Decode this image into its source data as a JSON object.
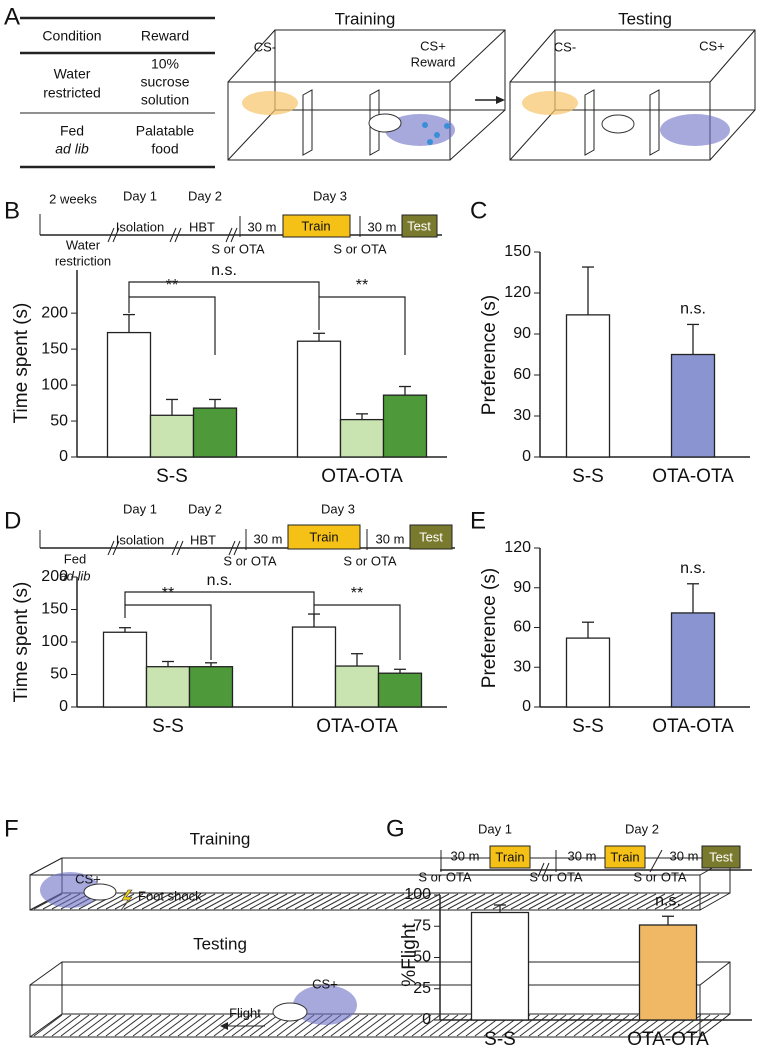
{
  "figure": {
    "panel_labels": [
      "A",
      "B",
      "C",
      "D",
      "E",
      "F",
      "G"
    ],
    "table": {
      "header": [
        "Condition",
        "Reward"
      ],
      "rows": [
        [
          [
            "Water",
            "restricted"
          ],
          [
            "10%",
            "sucrose",
            "solution"
          ]
        ],
        [
          [
            "Fed",
            "ad lib"
          ],
          [
            "Palatable",
            "food"
          ]
        ]
      ]
    },
    "diagram_a": {
      "training": "Training",
      "testing": "Testing",
      "cs_minus": "CS-",
      "cs_plus_reward": [
        "CS+",
        "Reward"
      ],
      "cs_plus": "CS+"
    },
    "timeline_b": {
      "days": [
        "2 weeks",
        "Day 1",
        "Day 2",
        "Day 3"
      ],
      "phases": [
        "Water",
        "restriction",
        "Isolation",
        "HBT"
      ],
      "interval": "30 m",
      "injection": "S or OTA",
      "train": "Train",
      "test": "Test"
    },
    "timeline_d": {
      "days": [
        "Day 1",
        "Day 2",
        "Day 3"
      ],
      "phases": [
        "Fed",
        "ad lib",
        "Isolation",
        "HBT"
      ],
      "interval": "30 m",
      "injection": "S or OTA",
      "train": "Train",
      "test": "Test"
    },
    "diagram_f": {
      "training": "Training",
      "testing": "Testing",
      "cs_plus": "CS+",
      "foot_shock": "Foot shock",
      "flight": "Flight"
    },
    "timeline_g": {
      "days": [
        "Day 1",
        "Day 2"
      ],
      "interval": "30 m",
      "injection": "S or OTA",
      "train": "Train",
      "test": "Test"
    }
  },
  "chart_data": [
    {
      "type": "bar",
      "ylabel": "Time spent (s)",
      "categories": [
        "S-S",
        "OTA-OTA"
      ],
      "series": [
        {
          "color": "#ffffff",
          "values": [
            173,
            161
          ],
          "errors": [
            25,
            11
          ]
        },
        {
          "color": "#c9e4b0",
          "values": [
            58,
            52
          ],
          "errors": [
            22,
            8
          ]
        },
        {
          "color": "#4e9a3a",
          "values": [
            68,
            86
          ],
          "errors": [
            12,
            12
          ]
        }
      ],
      "ylim": [
        0,
        260
      ],
      "yticks": [
        0,
        50,
        100,
        150,
        200
      ],
      "annotations": [
        "**",
        "**",
        "n.s."
      ]
    },
    {
      "type": "bar",
      "ylabel": "Preference (s)",
      "categories": [
        "S-S",
        "OTA-OTA"
      ],
      "series": [
        {
          "colors": [
            "#ffffff",
            "#8a94d0"
          ],
          "values": [
            104,
            75
          ],
          "errors": [
            35,
            22
          ]
        }
      ],
      "ylim": [
        0,
        150
      ],
      "yticks": [
        0,
        30,
        60,
        90,
        120,
        150
      ],
      "annotations": [
        "n.s."
      ]
    },
    {
      "type": "bar",
      "ylabel": "Time spent (s)",
      "categories": [
        "S-S",
        "OTA-OTA"
      ],
      "series": [
        {
          "color": "#ffffff",
          "values": [
            115,
            123
          ],
          "errors": [
            7,
            20
          ]
        },
        {
          "color": "#c9e4b0",
          "values": [
            62,
            63
          ],
          "errors": [
            8,
            19
          ]
        },
        {
          "color": "#4e9a3a",
          "values": [
            62,
            52
          ],
          "errors": [
            6,
            6
          ]
        }
      ],
      "ylim": [
        0,
        200
      ],
      "yticks": [
        0,
        50,
        100,
        150,
        200
      ],
      "annotations": [
        "**",
        "**",
        "n.s."
      ]
    },
    {
      "type": "bar",
      "ylabel": "Preference (s)",
      "categories": [
        "S-S",
        "OTA-OTA"
      ],
      "series": [
        {
          "colors": [
            "#ffffff",
            "#8a94d0"
          ],
          "values": [
            52,
            71
          ],
          "errors": [
            12,
            22
          ]
        }
      ],
      "ylim": [
        0,
        120
      ],
      "yticks": [
        0,
        30,
        60,
        90,
        120
      ],
      "annotations": [
        "n.s."
      ]
    },
    {
      "type": "bar",
      "ylabel": "%Flight",
      "categories": [
        "S-S",
        "OTA-OTA"
      ],
      "series": [
        {
          "colors": [
            "#ffffff",
            "#f0b865"
          ],
          "values": [
            86,
            76
          ],
          "errors": [
            6,
            7
          ]
        }
      ],
      "ylim": [
        0,
        100
      ],
      "yticks": [
        0,
        25,
        50,
        75,
        100
      ],
      "annotations": [
        "n.s."
      ]
    }
  ]
}
